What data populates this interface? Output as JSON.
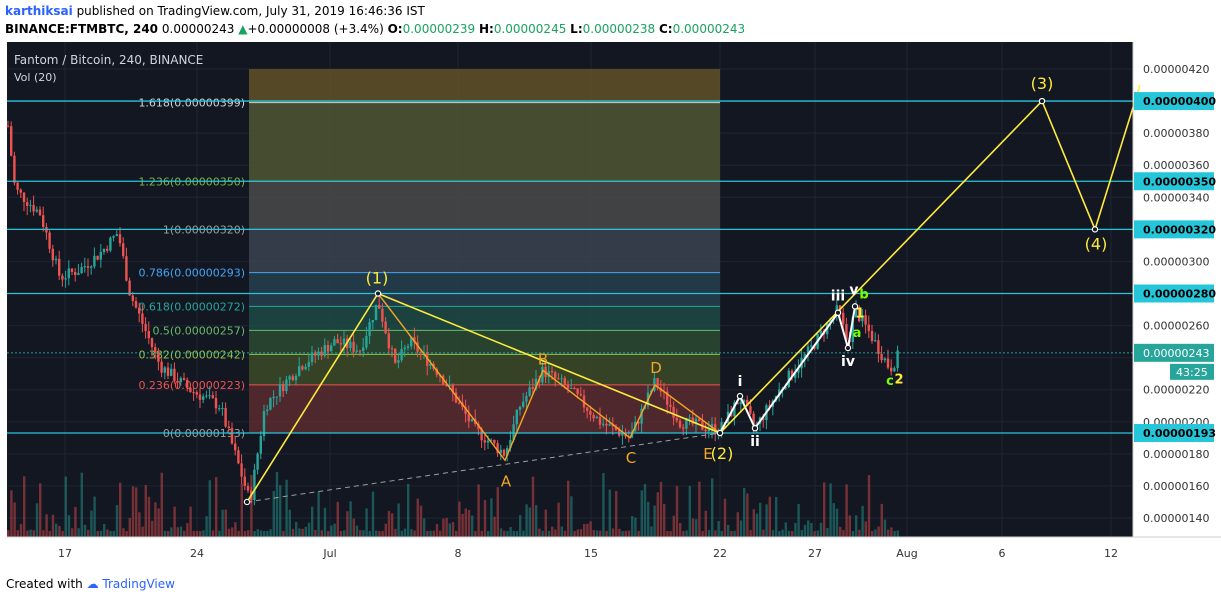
{
  "header": {
    "user": "karthiksai",
    "published": "published on TradingView.com, July 31, 2019 16:46:36 IST",
    "symbol": "BINANCE:FTMBTC, 240",
    "price": "0.00000243",
    "change_arrow": "▲",
    "change": "+0.00000008 (+3.4%)",
    "o_label": "O:",
    "o": "0.00000239",
    "h_label": "H:",
    "h": "0.00000245",
    "l_label": "L:",
    "l": "0.00000238",
    "c_label": "C:",
    "c": "0.00000243"
  },
  "chart": {
    "title": "Fantom / Bitcoin, 240, BINANCE",
    "vol_label": "Vol (20)",
    "countdown": "43:25",
    "colors": {
      "bg": "#131722",
      "up": "#26a69a",
      "down": "#ef5350",
      "hline": "#26c6da",
      "wave": "#ffeb3b",
      "abc": "#f5a623",
      "sub": "#ffffff",
      "grid": "#1e2433"
    }
  },
  "chart_data": {
    "type": "candlestick",
    "x_labels": [
      "17",
      "24",
      "Jul",
      "8",
      "15",
      "22",
      "27",
      "Aug",
      "6",
      "12"
    ],
    "y_ticks": [
      "0.00000420",
      "0.00000400",
      "0.00000380",
      "0.00000360",
      "0.00000340",
      "0.00000320",
      "0.00000300",
      "0.00000280",
      "0.00000260",
      "0.00000240",
      "0.00000220",
      "0.00000200",
      "0.00000180",
      "0.00000160",
      "0.00000140"
    ],
    "ylim": [
      1.3e-06,
      4.3e-06
    ],
    "h_levels": [
      "0.00000400",
      "0.00000350",
      "0.00000320",
      "0.00000280",
      "0.00000193"
    ],
    "last_price": "0.00000243",
    "fibonacci": [
      {
        "label": "1.618(0.00000399)",
        "value": 3.99e-06,
        "color": "#d4d4d4"
      },
      {
        "label": "1.236(0.00000350)",
        "value": 3.5e-06,
        "color": "#7cb342"
      },
      {
        "label": "1(0.00000320)",
        "value": 3.2e-06,
        "color": "#9e9e9e"
      },
      {
        "label": "0.786(0.00000293)",
        "value": 2.93e-06,
        "color": "#42a5f5"
      },
      {
        "label": "0.618(0.00000272)",
        "value": 2.72e-06,
        "color": "#26a69a"
      },
      {
        "label": "0.5(0.00000257)",
        "value": 2.57e-06,
        "color": "#66bb6a"
      },
      {
        "label": "0.382(0.00000242)",
        "value": 2.42e-06,
        "color": "#8bc34a"
      },
      {
        "label": "0.236(0.00000223)",
        "value": 2.23e-06,
        "color": "#ef5350"
      },
      {
        "label": "0(0.00000193)",
        "value": 1.93e-06,
        "color": "#9e9e9e"
      }
    ],
    "waves": [
      {
        "label": "(1)",
        "value": 2.8e-06
      },
      {
        "label": "(2)",
        "value": 1.93e-06
      },
      {
        "label": "(3)",
        "value": 4e-06
      },
      {
        "label": "(4)",
        "value": 3.2e-06
      }
    ],
    "correction_labels": [
      "A",
      "B",
      "C",
      "D",
      "E"
    ],
    "sub_labels": [
      "i",
      "ii",
      "iii",
      "iv",
      "v"
    ],
    "small_labels": [
      "a",
      "b",
      "c",
      "1",
      "2"
    ]
  },
  "footer": {
    "created": "Created with",
    "brand": "TradingView"
  }
}
